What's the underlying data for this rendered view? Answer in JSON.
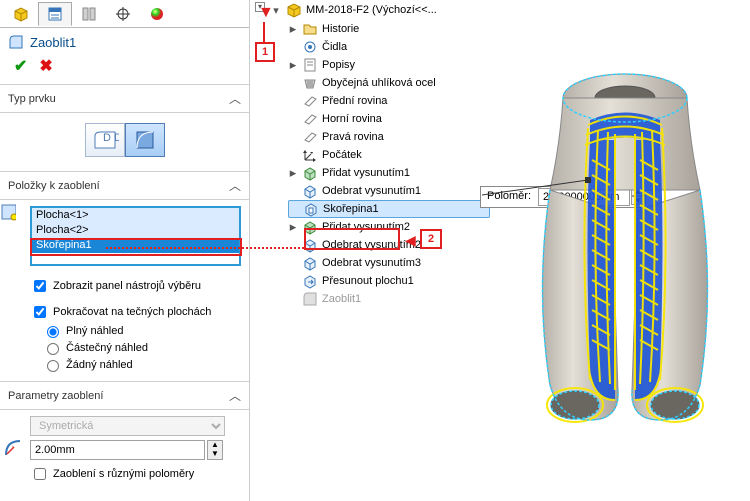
{
  "panel": {
    "featureTitle": "Zaoblit1",
    "sections": {
      "type": {
        "header": "Typ prvku"
      },
      "items": {
        "header": "Položky k zaoblení",
        "rows": [
          "Plocha<1>",
          "Plocha<2>",
          "Skořepina1"
        ],
        "checkboxes": {
          "showToolbar": "Zobrazit panel nástrojů výběru",
          "tangent": "Pokračovat na tečných plochách",
          "varRadius": "Zaoblení s různými poloměry"
        },
        "radios": {
          "full": "Plný náhled",
          "partial": "Částečný náhled",
          "none": "Žádný náhled"
        }
      },
      "params": {
        "header": "Parametry zaoblení",
        "symmetry": "Symetrická",
        "radius": "2.00mm"
      }
    }
  },
  "tree": {
    "root": "MM-2018-F2  (Výchozí<<...",
    "children": [
      {
        "label": "Historie",
        "exp": "▸"
      },
      {
        "label": "Čidla"
      },
      {
        "label": "Popisy",
        "exp": "▸"
      },
      {
        "label": "Obyčejná uhlíková ocel"
      },
      {
        "label": "Přední rovina"
      },
      {
        "label": "Horní rovina"
      },
      {
        "label": "Pravá rovina"
      },
      {
        "label": "Počátek"
      },
      {
        "label": "Přidat vysunutím1",
        "exp": "▸"
      },
      {
        "label": "Odebrat vysunutím1"
      },
      {
        "label": "Skořepina1",
        "sel": true
      },
      {
        "label": "Přidat vysunutím2",
        "exp": "▸"
      },
      {
        "label": "Odebrat vysunutím2"
      },
      {
        "label": "Odebrat vysunutím3"
      },
      {
        "label": "Přesunout plochu1"
      },
      {
        "label": "Zaoblit1",
        "grey": true
      }
    ]
  },
  "tooltip": {
    "label": "Poloměr:",
    "value": "2.00000000mm"
  },
  "annotations": {
    "label1": "1",
    "label2": "2"
  },
  "colors": {
    "accent": "#2d9ad6",
    "red": "#e02020",
    "partBlue": "#1e55d6",
    "partYellow": "#f7e600",
    "partGrey": "#cfcac3"
  }
}
